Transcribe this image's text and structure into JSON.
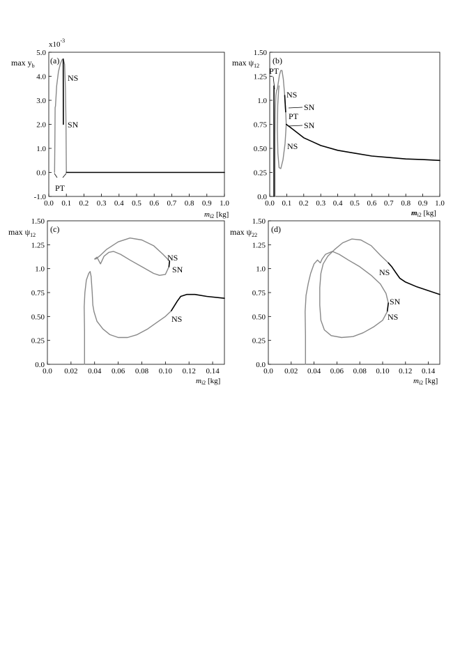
{
  "chart_data": [
    {
      "id": "a",
      "type": "line",
      "panel_label": "(a)",
      "ylabel_main": "max y",
      "ylabel_sub": "b",
      "multiplier_base": "x10",
      "multiplier_exp": "-3",
      "xlabel_main": "m",
      "xlabel_sub": "i2",
      "xlabel_unit": " [kg]",
      "xlim": [
        0,
        1.0
      ],
      "ylim": [
        -1.0,
        5.0
      ],
      "xticks": [
        "0.0",
        "0.1",
        "0.2",
        "0.3",
        "0.4",
        "0.5",
        "0.6",
        "0.7",
        "0.8",
        "0.9",
        "1.0"
      ],
      "yticks": [
        "-1.0",
        "0.0",
        "1.0",
        "2.0",
        "3.0",
        "4.0",
        "5.0"
      ],
      "series": [
        {
          "stability": "unstable",
          "color": "#888888",
          "points": [
            [
              0.033,
              0
            ],
            [
              0.035,
              1.5
            ],
            [
              0.036,
              2.7
            ],
            [
              0.038,
              2.75
            ],
            [
              0.045,
              3.6
            ],
            [
              0.055,
              4.2
            ],
            [
              0.065,
              4.5
            ],
            [
              0.075,
              4.68
            ],
            [
              0.082,
              4.72
            ],
            [
              0.09,
              4.5
            ],
            [
              0.095,
              3.5
            ],
            [
              0.098,
              2.0
            ],
            [
              0.1,
              0.0
            ]
          ]
        },
        {
          "stability": "stable",
          "color": "#000000",
          "points": [
            [
              0.082,
              4.72
            ],
            [
              0.083,
              2.0
            ]
          ]
        },
        {
          "stability": "stable",
          "color": "#000000",
          "points": [
            [
              0.1,
              0
            ],
            [
              1.0,
              0
            ]
          ]
        }
      ],
      "annotations": [
        "NS",
        "SN",
        "PT"
      ]
    },
    {
      "id": "b",
      "type": "line",
      "panel_label": "(b)",
      "ylabel_main": "max ψ",
      "ylabel_sub": "12",
      "xlabel_main": "m",
      "xlabel_sub": "i2",
      "xlabel_unit": " [kg]",
      "xlim": [
        0,
        1.0
      ],
      "ylim": [
        0,
        1.5
      ],
      "xticks": [
        "0.0",
        "0.1",
        "0.2",
        "0.3",
        "0.4",
        "0.5",
        "0.6",
        "0.7",
        "0.8",
        "0.9",
        "1.0"
      ],
      "yticks": [
        "0.0",
        "0.25",
        "0.50",
        "0.75",
        "1.0",
        "1.25",
        "1.50"
      ],
      "series": [
        {
          "stability": "unstable",
          "color": "#888888",
          "points": [
            [
              0.031,
              0
            ],
            [
              0.031,
              0.3
            ],
            [
              0.031,
              0.65
            ],
            [
              0.033,
              0.9
            ],
            [
              0.036,
              1.05
            ],
            [
              0.04,
              1.1
            ],
            [
              0.045,
              1.12
            ],
            [
              0.05,
              1.18
            ],
            [
              0.057,
              1.26
            ],
            [
              0.065,
              1.31
            ],
            [
              0.072,
              1.31
            ],
            [
              0.08,
              1.22
            ],
            [
              0.088,
              1.05
            ],
            [
              0.094,
              0.88
            ],
            [
              0.097,
              0.75
            ],
            [
              0.09,
              0.55
            ],
            [
              0.078,
              0.38
            ],
            [
              0.065,
              0.29
            ],
            [
              0.055,
              0.3
            ],
            [
              0.048,
              0.45
            ],
            [
              0.045,
              0.7
            ],
            [
              0.047,
              0.95
            ],
            [
              0.052,
              1.1
            ],
            [
              0.055,
              1.15
            ]
          ]
        },
        {
          "stability": "stable",
          "color": "#000000",
          "points": [
            [
              0.097,
              0.75
            ],
            [
              0.12,
              0.72
            ],
            [
              0.15,
              0.68
            ],
            [
              0.2,
              0.61
            ],
            [
              0.25,
              0.57
            ],
            [
              0.3,
              0.53
            ],
            [
              0.4,
              0.48
            ],
            [
              0.5,
              0.45
            ],
            [
              0.6,
              0.42
            ],
            [
              0.7,
              0.405
            ],
            [
              0.8,
              0.39
            ],
            [
              0.9,
              0.383
            ],
            [
              1.0,
              0.375
            ]
          ]
        },
        {
          "stability": "stable",
          "color": "#000000",
          "points": [
            [
              0.088,
              1.05
            ],
            [
              0.094,
              0.88
            ]
          ]
        },
        {
          "stability": "stable",
          "color": "#000000",
          "points": [
            [
              0.025,
              0
            ],
            [
              0.025,
              1.15
            ]
          ]
        }
      ],
      "annotations": [
        "PT",
        "NS",
        "SN",
        "PT",
        "SN",
        "NS"
      ]
    },
    {
      "id": "c",
      "type": "line",
      "panel_label": "(c)",
      "ylabel_main": "max ψ",
      "ylabel_sub": "12",
      "xlabel_main": "m",
      "xlabel_sub": "i2",
      "xlabel_unit": " [kg]",
      "xlim": [
        0,
        0.15
      ],
      "ylim": [
        0,
        1.5
      ],
      "xticks": [
        "0.0",
        "0.02",
        "0.04",
        "0.06",
        "0.08",
        "0.10",
        "0.12",
        "0.14"
      ],
      "yticks": [
        "0.0",
        "0.25",
        "0.50",
        "0.75",
        "1.0",
        "1.25",
        "1.50"
      ],
      "series": [
        {
          "stability": "unstable",
          "color": "#888888",
          "points": [
            [
              0.0315,
              0
            ],
            [
              0.0315,
              0.35
            ],
            [
              0.0312,
              0.6
            ],
            [
              0.0318,
              0.75
            ],
            [
              0.033,
              0.88
            ],
            [
              0.035,
              0.95
            ],
            [
              0.0362,
              0.97
            ],
            [
              0.037,
              0.92
            ],
            [
              0.038,
              0.75
            ],
            [
              0.0385,
              0.62
            ],
            [
              0.0395,
              0.55
            ],
            [
              0.042,
              0.45
            ],
            [
              0.047,
              0.37
            ],
            [
              0.053,
              0.31
            ],
            [
              0.06,
              0.28
            ],
            [
              0.068,
              0.28
            ],
            [
              0.076,
              0.31
            ],
            [
              0.085,
              0.37
            ],
            [
              0.093,
              0.44
            ],
            [
              0.1,
              0.5
            ],
            [
              0.105,
              0.56
            ]
          ]
        },
        {
          "stability": "stable",
          "color": "#000000",
          "points": [
            [
              0.105,
              0.56
            ],
            [
              0.11,
              0.66
            ],
            [
              0.113,
              0.71
            ],
            [
              0.118,
              0.73
            ],
            [
              0.125,
              0.73
            ],
            [
              0.135,
              0.71
            ],
            [
              0.15,
              0.69
            ]
          ]
        },
        {
          "stability": "unstable",
          "color": "#888888",
          "points": [
            [
              0.04,
              1.1
            ],
            [
              0.042,
              1.12
            ],
            [
              0.045,
              1.05
            ],
            [
              0.048,
              1.13
            ],
            [
              0.052,
              1.17
            ],
            [
              0.056,
              1.18
            ],
            [
              0.062,
              1.15
            ],
            [
              0.07,
              1.09
            ],
            [
              0.08,
              1.02
            ],
            [
              0.09,
              0.95
            ],
            [
              0.095,
              0.93
            ],
            [
              0.1,
              0.94
            ],
            [
              0.103,
              1.02
            ],
            [
              0.1035,
              1.08
            ],
            [
              0.098,
              1.15
            ],
            [
              0.09,
              1.24
            ],
            [
              0.08,
              1.3
            ],
            [
              0.07,
              1.32
            ],
            [
              0.06,
              1.28
            ],
            [
              0.05,
              1.2
            ],
            [
              0.045,
              1.14
            ],
            [
              0.041,
              1.1
            ]
          ]
        },
        {
          "stability": "stable",
          "color": "#000000",
          "points": [
            [
              0.1035,
              1.08
            ],
            [
              0.103,
              1.02
            ]
          ]
        }
      ],
      "annotations": [
        "NS",
        "SN",
        "NS"
      ]
    },
    {
      "id": "d",
      "type": "line",
      "panel_label": "(d)",
      "ylabel_main": "max ψ",
      "ylabel_sub": "22",
      "xlabel_main": "m",
      "xlabel_sub": "i2",
      "xlabel_unit": " [kg]",
      "xlim": [
        0,
        0.15
      ],
      "ylim": [
        0,
        1.5
      ],
      "xticks": [
        "0.0",
        "0.02",
        "0.04",
        "0.06",
        "0.08",
        "0.10",
        "0.12",
        "0.14"
      ],
      "yticks": [
        "0.0",
        "0.25",
        "0.50",
        "0.75",
        "1.0",
        "1.25",
        "1.50"
      ],
      "series": [
        {
          "stability": "unstable",
          "color": "#888888",
          "points": [
            [
              0.0325,
              0
            ],
            [
              0.0325,
              0.3
            ],
            [
              0.0322,
              0.55
            ],
            [
              0.033,
              0.72
            ],
            [
              0.035,
              0.85
            ],
            [
              0.037,
              0.95
            ],
            [
              0.04,
              1.05
            ],
            [
              0.043,
              1.09
            ],
            [
              0.0455,
              1.06
            ],
            [
              0.047,
              1.1
            ],
            [
              0.05,
              1.15
            ],
            [
              0.056,
              1.18
            ],
            [
              0.062,
              1.15
            ],
            [
              0.07,
              1.09
            ],
            [
              0.08,
              1.02
            ],
            [
              0.09,
              0.93
            ],
            [
              0.098,
              0.84
            ],
            [
              0.103,
              0.74
            ],
            [
              0.105,
              0.64
            ]
          ]
        },
        {
          "stability": "stable",
          "color": "#000000",
          "points": [
            [
              0.105,
              0.64
            ],
            [
              0.104,
              0.55
            ]
          ]
        },
        {
          "stability": "unstable",
          "color": "#888888",
          "points": [
            [
              0.104,
              0.55
            ],
            [
              0.1,
              0.46
            ],
            [
              0.092,
              0.39
            ],
            [
              0.083,
              0.33
            ],
            [
              0.074,
              0.29
            ],
            [
              0.064,
              0.28
            ],
            [
              0.055,
              0.3
            ],
            [
              0.049,
              0.36
            ],
            [
              0.046,
              0.46
            ],
            [
              0.045,
              0.62
            ],
            [
              0.045,
              0.8
            ],
            [
              0.046,
              0.95
            ],
            [
              0.048,
              1.05
            ],
            [
              0.052,
              1.13
            ],
            [
              0.058,
              1.2
            ],
            [
              0.065,
              1.27
            ],
            [
              0.073,
              1.31
            ],
            [
              0.081,
              1.3
            ],
            [
              0.09,
              1.24
            ],
            [
              0.098,
              1.14
            ],
            [
              0.105,
              1.06
            ]
          ]
        },
        {
          "stability": "stable",
          "color": "#000000",
          "points": [
            [
              0.105,
              1.06
            ],
            [
              0.108,
              1.02
            ],
            [
              0.112,
              0.95
            ],
            [
              0.115,
              0.9
            ],
            [
              0.12,
              0.86
            ],
            [
              0.13,
              0.81
            ],
            [
              0.14,
              0.77
            ],
            [
              0.15,
              0.73
            ]
          ]
        }
      ],
      "annotations": [
        "NS",
        "SN",
        "NS"
      ]
    }
  ]
}
